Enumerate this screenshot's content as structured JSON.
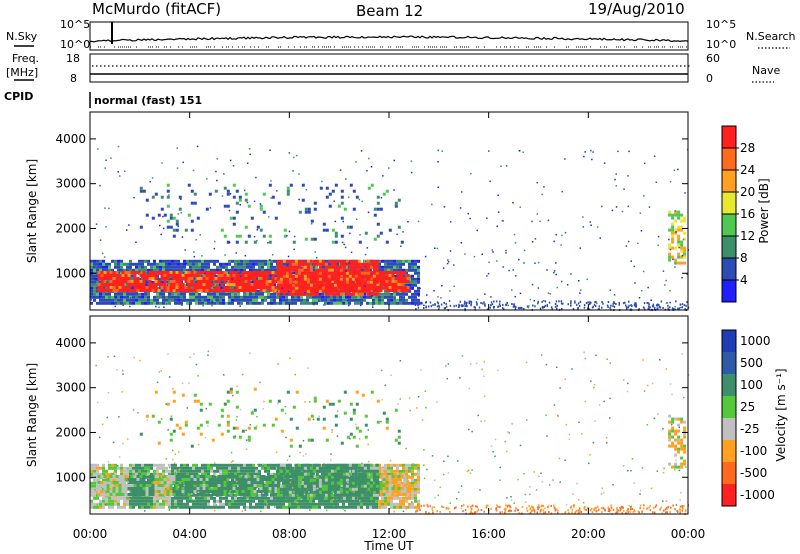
{
  "header": {
    "station": "McMurdo (fitACF)",
    "beam": "Beam 12",
    "date": "19/Aug/2010"
  },
  "top_panels": {
    "nsky_label": "N.Sky",
    "nsearch_label": "N.Search",
    "freq_label_1": "Freq.",
    "freq_label_2": "[MHz]",
    "nave_label": "Nave",
    "cpid_label": "CPID",
    "cpid_value": "normal (fast) 151",
    "nsky_ticks": [
      "10^5",
      "10^0"
    ],
    "nsearch_ticks": [
      "10^5",
      "10^0"
    ],
    "freq_ticks": [
      "18",
      "8"
    ],
    "nave_ticks": [
      "60",
      "0"
    ],
    "freq_ylim": [
      8,
      18
    ],
    "nave_ylim": [
      0,
      60
    ]
  },
  "chart_data": [
    {
      "type": "heatmap",
      "name": "power",
      "ylabel": "Slant Range [km]",
      "xlabel": "Time UT",
      "x_ticks": [
        "00:00",
        "04:00",
        "08:00",
        "12:00",
        "16:00",
        "20:00",
        "00:00"
      ],
      "x_hours": [
        0,
        4,
        8,
        12,
        16,
        20,
        24
      ],
      "xlim": [
        0,
        24
      ],
      "y_ticks": [
        1000,
        2000,
        3000,
        4000
      ],
      "ylim": [
        180,
        4600
      ],
      "colorbar": {
        "label": "Power [dB]",
        "ticks": [
          4,
          8,
          12,
          16,
          20,
          24,
          28
        ],
        "colors": [
          "#1e1eff",
          "#2b4bb5",
          "#3d8f6a",
          "#4fc84f",
          "#e8e830",
          "#ffa020",
          "#ff6a1e",
          "#ff2020"
        ]
      },
      "blobs": [
        {
          "t0": 0.0,
          "t1": 13.2,
          "r0": 350,
          "r1": 1300,
          "level": "low"
        },
        {
          "t0": 0.3,
          "t1": 12.8,
          "r0": 600,
          "r1": 1050,
          "level": "high"
        },
        {
          "t0": 7.5,
          "t1": 11.5,
          "r0": 500,
          "r1": 1300,
          "level": "high"
        },
        {
          "t0": 2.0,
          "t1": 12.5,
          "r0": 1700,
          "r1": 3000,
          "level": "sparse"
        },
        {
          "t0": 23.2,
          "t1": 23.9,
          "r0": 1200,
          "r1": 2400,
          "level": "mid"
        }
      ]
    },
    {
      "type": "heatmap",
      "name": "velocity",
      "ylabel": "Slant Range [km]",
      "xlabel": "Time UT",
      "x_ticks": [
        "00:00",
        "04:00",
        "08:00",
        "12:00",
        "16:00",
        "20:00",
        "00:00"
      ],
      "x_hours": [
        0,
        4,
        8,
        12,
        16,
        20,
        24
      ],
      "xlim": [
        0,
        24
      ],
      "y_ticks": [
        1000,
        2000,
        3000,
        4000
      ],
      "ylim": [
        180,
        4600
      ],
      "colorbar": {
        "label": "Velocity [m s⁻¹]",
        "ticks": [
          "1000",
          "500",
          "100",
          "25",
          "-25",
          "-100",
          "-500",
          "-1000"
        ],
        "colors": [
          "#1e3cb4",
          "#2e5aa8",
          "#3d8f6a",
          "#55c83a",
          "#c0c0c0",
          "#ffa020",
          "#ff6a1e",
          "#ff2020"
        ]
      }
    }
  ]
}
